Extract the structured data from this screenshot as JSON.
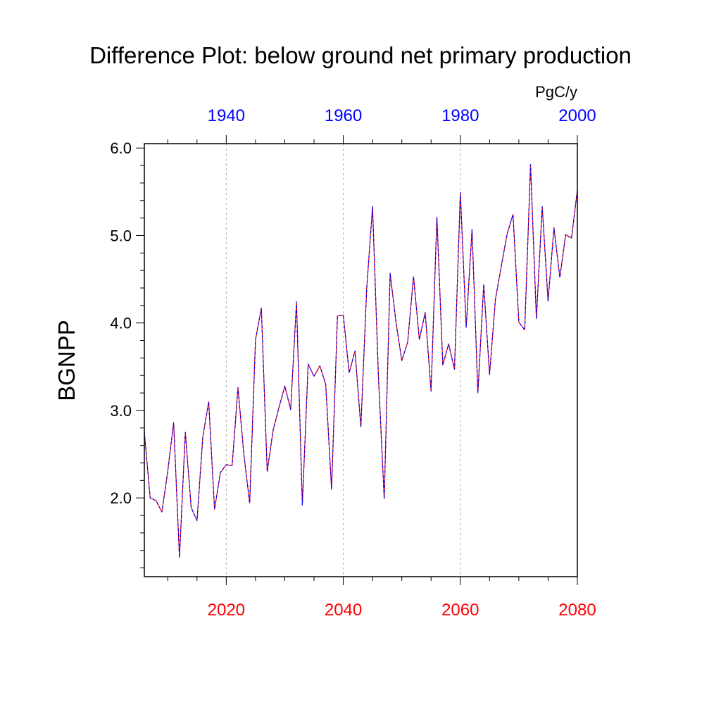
{
  "chart_data": {
    "type": "line",
    "title": "Difference Plot: below ground net primary production",
    "units": "PgC/y",
    "ylabel": "BGNPP",
    "ylim": [
      1.1,
      6.05
    ],
    "yticks": [
      2.0,
      3.0,
      4.0,
      5.0,
      6.0
    ],
    "ytick_labels": [
      "2.0",
      "3.0",
      "4.0",
      "5.0",
      "6.0"
    ],
    "bottom_axis": {
      "range": [
        2006,
        2080
      ],
      "ticks": [
        2020,
        2040,
        2060,
        2080
      ],
      "tick_labels": [
        "2020",
        "2040",
        "2060",
        "2080"
      ],
      "color": "#ff0000"
    },
    "top_axis": {
      "range": [
        1926,
        2000
      ],
      "ticks": [
        1940,
        1960,
        1980,
        2000
      ],
      "tick_labels": [
        "1940",
        "1960",
        "1980",
        "2000"
      ],
      "color": "#0000ff"
    },
    "grid": "vertical dashed at major bottom ticks",
    "series": [
      {
        "color": "#ff0000",
        "x": [
          2006,
          2007,
          2008,
          2009,
          2010,
          2011,
          2012,
          2013,
          2014,
          2015,
          2016,
          2017,
          2018,
          2019,
          2020,
          2021,
          2022,
          2023,
          2024,
          2025,
          2026,
          2027,
          2028,
          2029,
          2030,
          2031,
          2032,
          2033,
          2034,
          2035,
          2036,
          2037,
          2038,
          2039,
          2040,
          2041,
          2042,
          2043,
          2044,
          2045,
          2046,
          2047,
          2048,
          2049,
          2050,
          2051,
          2052,
          2053,
          2054,
          2055,
          2056,
          2057,
          2058,
          2059,
          2060,
          2061,
          2062,
          2063,
          2064,
          2065,
          2066,
          2067,
          2068,
          2069,
          2070,
          2071,
          2072,
          2073,
          2074,
          2075,
          2076,
          2077,
          2078,
          2079,
          2080
        ],
        "y": [
          2.75,
          2.0,
          1.97,
          1.84,
          2.3,
          2.86,
          1.32,
          2.75,
          1.89,
          1.74,
          2.7,
          3.1,
          1.87,
          2.29,
          2.38,
          2.37,
          3.26,
          2.5,
          1.94,
          3.81,
          4.17,
          2.3,
          2.77,
          3.03,
          3.28,
          3.01,
          4.24,
          1.92,
          3.53,
          3.39,
          3.51,
          3.3,
          2.1,
          4.08,
          4.09,
          3.43,
          3.68,
          2.81,
          4.39,
          5.33,
          3.4,
          1.99,
          4.57,
          4.01,
          3.57,
          3.78,
          4.53,
          3.81,
          4.12,
          3.22,
          5.21,
          3.52,
          3.76,
          3.47,
          5.49,
          3.95,
          5.07,
          3.2,
          4.44,
          3.41,
          4.27,
          4.65,
          5.02,
          5.24,
          4.01,
          3.92,
          5.81,
          4.05,
          5.33,
          4.25,
          5.09,
          4.52,
          5.01,
          4.97,
          5.52
        ]
      },
      {
        "color": "#0000ff",
        "x": [
          1926,
          1927,
          1928,
          1929,
          1930,
          1931,
          1932,
          1933,
          1934,
          1935,
          1936,
          1937,
          1938,
          1939,
          1940,
          1941,
          1942,
          1943,
          1944,
          1945,
          1946,
          1947,
          1948,
          1949,
          1950,
          1951,
          1952,
          1953,
          1954,
          1955,
          1956,
          1957,
          1958,
          1959,
          1960,
          1961,
          1962,
          1963,
          1964,
          1965,
          1966,
          1967,
          1968,
          1969,
          1970,
          1971,
          1972,
          1973,
          1974,
          1975,
          1976,
          1977,
          1978,
          1979,
          1980,
          1981,
          1982,
          1983,
          1984,
          1985,
          1986,
          1987,
          1988,
          1989,
          1990,
          1991,
          1992,
          1993,
          1994,
          1995,
          1996,
          1997,
          1998,
          1999,
          2000
        ],
        "y": [
          2.75,
          2.0,
          1.97,
          1.84,
          2.3,
          2.86,
          1.32,
          2.75,
          1.89,
          1.74,
          2.7,
          3.1,
          1.87,
          2.29,
          2.38,
          2.37,
          3.26,
          2.5,
          1.94,
          3.81,
          4.17,
          2.3,
          2.77,
          3.03,
          3.28,
          3.01,
          4.24,
          1.92,
          3.53,
          3.39,
          3.51,
          3.3,
          2.1,
          4.08,
          4.09,
          3.43,
          3.68,
          2.81,
          4.39,
          5.33,
          3.4,
          1.99,
          4.57,
          4.01,
          3.57,
          3.78,
          4.53,
          3.81,
          4.12,
          3.22,
          5.21,
          3.52,
          3.76,
          3.47,
          5.49,
          3.95,
          5.07,
          3.2,
          4.44,
          3.41,
          4.27,
          4.65,
          5.02,
          5.24,
          4.01,
          3.92,
          5.81,
          4.05,
          5.33,
          4.25,
          5.09,
          4.52,
          5.01,
          4.97,
          5.52
        ]
      }
    ]
  }
}
